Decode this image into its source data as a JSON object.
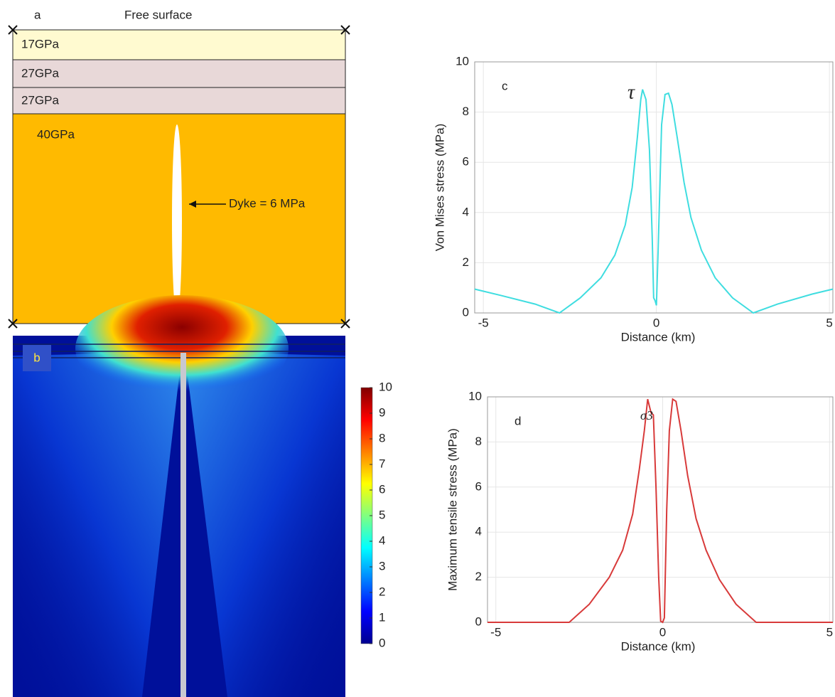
{
  "diagram": {
    "label": "a",
    "top_label": "Free surface",
    "layers": [
      "17GPa",
      "27GPa",
      "27GPa",
      "40GPa"
    ],
    "dyke_label": "Dyke = 6 MPa"
  },
  "chart_data": [
    {
      "type": "heatmap",
      "label": "b",
      "colormap": "jet",
      "clim": [
        0,
        10
      ],
      "ticks": [
        0,
        1,
        2,
        3,
        4,
        5,
        6,
        7,
        8,
        9,
        10
      ]
    },
    {
      "type": "line",
      "label": "c",
      "annotation": "τ",
      "xlabel": "Distance (km)",
      "ylabel": "Von Mises stress (MPa)",
      "xlim": [
        -5.25,
        5.1
      ],
      "ylim": [
        0,
        10
      ],
      "xticks": [
        -5,
        0,
        5
      ],
      "yticks": [
        0,
        2,
        4,
        6,
        8,
        10
      ],
      "grid": true,
      "series": [
        {
          "color": "#3fdde0",
          "x": [
            -5.25,
            -4.5,
            -3.5,
            -2.8,
            -2.2,
            -1.6,
            -1.2,
            -0.9,
            -0.7,
            -0.55,
            -0.45,
            -0.4,
            -0.3,
            -0.2,
            -0.12,
            -0.08,
            -0.04,
            0,
            0.05,
            0.15,
            0.25,
            0.35,
            0.45,
            0.6,
            0.8,
            1.0,
            1.3,
            1.7,
            2.2,
            2.8,
            3.5,
            4.5,
            5.1
          ],
          "values": [
            0.95,
            0.7,
            0.35,
            0,
            0.6,
            1.4,
            2.3,
            3.5,
            5,
            7,
            8.5,
            8.9,
            8.5,
            6.5,
            3,
            0.6,
            0.5,
            0.3,
            2.5,
            7.5,
            8.7,
            8.75,
            8.3,
            7,
            5.2,
            3.8,
            2.5,
            1.4,
            0.6,
            0,
            0.35,
            0.75,
            0.95
          ]
        }
      ]
    },
    {
      "type": "line",
      "label": "d",
      "annotation": "σ3",
      "xlabel": "Distance (km)",
      "ylabel": "Maximum tensile stress (MPa)",
      "xlim": [
        -5.25,
        5.1
      ],
      "ylim": [
        0,
        10
      ],
      "xticks": [
        -5,
        0,
        5
      ],
      "yticks": [
        0,
        2,
        4,
        6,
        8,
        10
      ],
      "grid": true,
      "series": [
        {
          "color": "#d83a3a",
          "x": [
            -5.25,
            -2.8,
            -2.2,
            -1.6,
            -1.2,
            -0.9,
            -0.7,
            -0.55,
            -0.45,
            -0.35,
            -0.28,
            -0.2,
            -0.12,
            -0.06,
            0,
            0.05,
            0.12,
            0.2,
            0.3,
            0.4,
            0.55,
            0.75,
            1.0,
            1.3,
            1.7,
            2.2,
            2.8,
            5.1
          ],
          "values": [
            0,
            0,
            0.8,
            2,
            3.2,
            4.8,
            6.8,
            8.5,
            9.9,
            9.3,
            9.2,
            6,
            2,
            0.05,
            0,
            0.2,
            5,
            8.5,
            9.9,
            9.8,
            8.5,
            6.5,
            4.6,
            3.2,
            1.9,
            0.8,
            0,
            0
          ]
        }
      ]
    }
  ]
}
